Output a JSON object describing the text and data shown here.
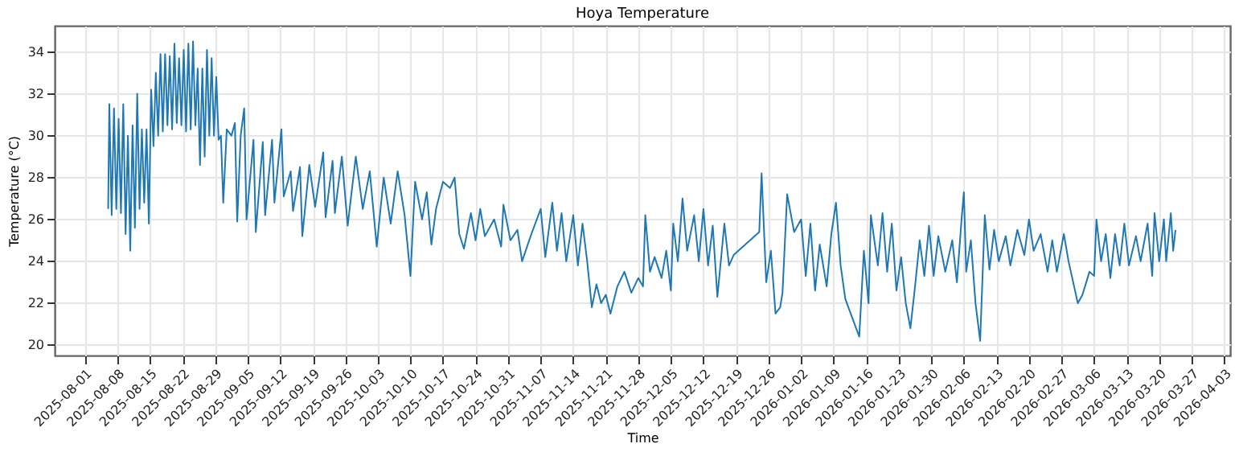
{
  "chart_data": {
    "type": "line",
    "title": "Hoya Temperature",
    "xlabel": "Time",
    "ylabel": "Temperature (°C)",
    "xlim": [
      "2025-07-25T12:00",
      "2026-04-04T06:00"
    ],
    "xticks": [
      "2025-08-01",
      "2025-08-08",
      "2025-08-15",
      "2025-08-22",
      "2025-08-29",
      "2025-09-05",
      "2025-09-12",
      "2025-09-19",
      "2025-09-26",
      "2025-10-03",
      "2025-10-10",
      "2025-10-17",
      "2025-10-24",
      "2025-10-31",
      "2025-11-07",
      "2025-11-14",
      "2025-11-21",
      "2025-11-28",
      "2025-12-05",
      "2025-12-12",
      "2025-12-19",
      "2025-12-26",
      "2026-01-02",
      "2026-01-09",
      "2026-01-16",
      "2026-01-23",
      "2026-01-30",
      "2026-02-06",
      "2026-02-13",
      "2026-02-20",
      "2026-02-27",
      "2026-03-06",
      "2026-03-13",
      "2026-03-20",
      "2026-03-27",
      "2026-04-03"
    ],
    "ylim": [
      19.5,
      35.25
    ],
    "yticks": [
      20,
      22,
      24,
      26,
      28,
      30,
      32,
      34
    ],
    "grid": true,
    "series": [
      {
        "color": "#1f77b4",
        "x": [
          "2025-08-06T00:00",
          "2025-08-06T06:00",
          "2025-08-06T18:00",
          "2025-08-07T06:00",
          "2025-08-07T18:00",
          "2025-08-08T06:00",
          "2025-08-08T18:00",
          "2025-08-09T06:00",
          "2025-08-09T18:00",
          "2025-08-10T06:00",
          "2025-08-10T18:00",
          "2025-08-11T06:00",
          "2025-08-11T18:00",
          "2025-08-12T06:00",
          "2025-08-12T18:00",
          "2025-08-13T06:00",
          "2025-08-13T18:00",
          "2025-08-14T06:00",
          "2025-08-14T18:00",
          "2025-08-15T06:00",
          "2025-08-15T18:00",
          "2025-08-16T06:00",
          "2025-08-16T18:00",
          "2025-08-17T06:00",
          "2025-08-17T18:00",
          "2025-08-18T06:00",
          "2025-08-18T18:00",
          "2025-08-19T06:00",
          "2025-08-19T18:00",
          "2025-08-20T06:00",
          "2025-08-20T18:00",
          "2025-08-21T06:00",
          "2025-08-21T18:00",
          "2025-08-22T06:00",
          "2025-08-22T18:00",
          "2025-08-23T06:00",
          "2025-08-23T18:00",
          "2025-08-24T06:00",
          "2025-08-24T18:00",
          "2025-08-25T06:00",
          "2025-08-25T18:00",
          "2025-08-26T06:00",
          "2025-08-26T18:00",
          "2025-08-27T06:00",
          "2025-08-27T18:00",
          "2025-08-28T06:00",
          "2025-08-28T18:00",
          "2025-08-29T06:00",
          "2025-08-29T18:00",
          "2025-08-30T06:00",
          "2025-08-30T18:00",
          "2025-08-31T12:00",
          "2025-09-01T12:00",
          "2025-09-02T06:00",
          "2025-09-02T18:00",
          "2025-09-03T12:00",
          "2025-09-04T06:00",
          "2025-09-04T18:00",
          "2025-09-06T06:00",
          "2025-09-06T18:00",
          "2025-09-08T06:00",
          "2025-09-08T18:00",
          "2025-09-10T06:00",
          "2025-09-10T18:00",
          "2025-09-12T06:00",
          "2025-09-12T18:00",
          "2025-09-14T06:00",
          "2025-09-14T18:00",
          "2025-09-16T06:00",
          "2025-09-16T18:00",
          "2025-09-18T06:00",
          "2025-09-19T12:00",
          "2025-09-21T06:00",
          "2025-09-21T18:00",
          "2025-09-23T06:00",
          "2025-09-23T18:00",
          "2025-09-25T06:00",
          "2025-09-26T12:00",
          "2025-09-28T06:00",
          "2025-09-29T18:00",
          "2025-10-01T06:00",
          "2025-10-02T18:00",
          "2025-10-04T06:00",
          "2025-10-05T18:00",
          "2025-10-07T06:00",
          "2025-10-08T18:00",
          "2025-10-10T00:00",
          "2025-10-11T00:00",
          "2025-10-12T12:00",
          "2025-10-13T12:00",
          "2025-10-14T12:00",
          "2025-10-15T12:00",
          "2025-10-17T00:00",
          "2025-10-18T12:00",
          "2025-10-19T12:00",
          "2025-10-20T12:00",
          "2025-10-21T12:00",
          "2025-10-23T00:00",
          "2025-10-24T00:00",
          "2025-10-25T00:00",
          "2025-10-26T00:00",
          "2025-10-28T00:00",
          "2025-10-29T12:00",
          "2025-10-30T00:00",
          "2025-10-31T12:00",
          "2025-11-02T00:00",
          "2025-11-03T00:00",
          "2025-11-05T00:00",
          "2025-11-07T00:00",
          "2025-11-08T00:00",
          "2025-11-09T12:00",
          "2025-11-10T12:00",
          "2025-11-11T12:00",
          "2025-11-12T12:00",
          "2025-11-14T00:00",
          "2025-11-15T00:00",
          "2025-11-16T00:00",
          "2025-11-17T00:00",
          "2025-11-18T00:00",
          "2025-11-19T00:00",
          "2025-11-20T00:00",
          "2025-11-21T00:00",
          "2025-11-22T00:00",
          "2025-11-23T12:00",
          "2025-11-25T00:00",
          "2025-11-26T12:00",
          "2025-11-28T00:00",
          "2025-11-29T00:00",
          "2025-11-29T12:00",
          "2025-11-30T12:00",
          "2025-12-01T12:00",
          "2025-12-03T00:00",
          "2025-12-04T00:00",
          "2025-12-05T00:00",
          "2025-12-05T12:00",
          "2025-12-06T12:00",
          "2025-12-07T12:00",
          "2025-12-08T12:00",
          "2025-12-10T00:00",
          "2025-12-11T00:00",
          "2025-12-12T00:00",
          "2025-12-13T00:00",
          "2025-12-14T00:00",
          "2025-12-15T00:00",
          "2025-12-16T12:00",
          "2025-12-17T12:00",
          "2025-12-18T12:00",
          "2025-12-24T00:00",
          "2025-12-24T12:00",
          "2025-12-25T12:00",
          "2025-12-26T12:00",
          "2025-12-27T12:00",
          "2025-12-28T12:00",
          "2025-12-29T00:00",
          "2025-12-30T00:00",
          "2025-12-31T12:00",
          "2026-01-02T00:00",
          "2026-01-03T00:00",
          "2026-01-04T00:00",
          "2026-01-05T00:00",
          "2026-01-06T00:00",
          "2026-01-07T12:00",
          "2026-01-08T12:00",
          "2026-01-09T12:00",
          "2026-01-10T12:00",
          "2026-01-11T12:00",
          "2026-01-12T12:00",
          "2026-01-13T12:00",
          "2026-01-14T12:00",
          "2026-01-15T12:00",
          "2026-01-16T12:00",
          "2026-01-17T00:00",
          "2026-01-18T12:00",
          "2026-01-19T12:00",
          "2026-01-20T12:00",
          "2026-01-21T12:00",
          "2026-01-22T12:00",
          "2026-01-23T12:00",
          "2026-01-24T12:00",
          "2026-01-25T12:00",
          "2026-01-26T12:00",
          "2026-01-27T12:00",
          "2026-01-28T12:00",
          "2026-01-29T12:00",
          "2026-01-30T12:00",
          "2026-01-31T12:00",
          "2026-02-02T00:00",
          "2026-02-03T12:00",
          "2026-02-04T12:00",
          "2026-02-05T12:00",
          "2026-02-06T00:00",
          "2026-02-06T12:00",
          "2026-02-07T12:00",
          "2026-02-08T12:00",
          "2026-02-09T12:00",
          "2026-02-10T12:00",
          "2026-02-11T12:00",
          "2026-02-12T12:00",
          "2026-02-13T12:00",
          "2026-02-15T00:00",
          "2026-02-16T00:00",
          "2026-02-17T12:00",
          "2026-02-19T00:00",
          "2026-02-20T00:00",
          "2026-02-21T00:00",
          "2026-02-22T12:00",
          "2026-02-24T00:00",
          "2026-02-25T00:00",
          "2026-02-26T00:00",
          "2026-02-27T12:00",
          "2026-02-28T12:00",
          "2026-03-01T12:00",
          "2026-03-02T12:00",
          "2026-03-03T12:00",
          "2026-03-05T00:00",
          "2026-03-06T00:00",
          "2026-03-06T12:00",
          "2026-03-07T12:00",
          "2026-03-08T12:00",
          "2026-03-09T12:00",
          "2026-03-10T12:00",
          "2026-03-11T12:00",
          "2026-03-12T12:00",
          "2026-03-13T12:00",
          "2026-03-15T00:00",
          "2026-03-16T00:00",
          "2026-03-17T12:00",
          "2026-03-18T12:00",
          "2026-03-19T00:00",
          "2026-03-20T00:00",
          "2026-03-21T00:00",
          "2026-03-21T12:00",
          "2026-03-22T12:00",
          "2026-03-23T00:00",
          "2026-03-23T12:00"
        ],
        "values": [
          26.5,
          31.5,
          26.2,
          31.3,
          26.5,
          30.8,
          26.3,
          31.5,
          25.3,
          30.0,
          24.5,
          30.5,
          25.6,
          32.0,
          26.5,
          30.3,
          26.8,
          30.3,
          25.8,
          32.2,
          29.5,
          33.0,
          30.0,
          33.9,
          30.2,
          33.9,
          30.5,
          33.8,
          30.3,
          34.4,
          30.6,
          33.7,
          30.5,
          34.1,
          30.2,
          34.4,
          30.3,
          34.5,
          30.5,
          33.2,
          28.6,
          33.2,
          29.0,
          34.1,
          30.0,
          33.7,
          30.0,
          32.8,
          29.8,
          30.0,
          26.8,
          30.3,
          30.0,
          30.6,
          25.9,
          30.0,
          31.3,
          26.0,
          29.8,
          25.4,
          29.7,
          26.2,
          29.8,
          26.8,
          30.3,
          27.1,
          28.3,
          26.4,
          28.5,
          25.2,
          28.6,
          26.6,
          29.2,
          26.1,
          28.8,
          26.3,
          29.0,
          25.7,
          29.0,
          26.5,
          28.3,
          24.7,
          28.0,
          25.8,
          28.3,
          26.2,
          23.3,
          27.8,
          26.0,
          27.3,
          24.8,
          26.5,
          27.8,
          27.5,
          28.0,
          25.3,
          24.6,
          26.3,
          25.0,
          26.5,
          25.2,
          26.0,
          24.7,
          26.7,
          25.0,
          25.5,
          24.0,
          25.3,
          26.5,
          24.2,
          26.8,
          24.5,
          26.3,
          24.0,
          26.2,
          23.8,
          25.8,
          24.0,
          21.8,
          22.9,
          22.0,
          22.4,
          21.5,
          22.8,
          23.5,
          22.5,
          23.2,
          22.8,
          26.2,
          23.5,
          24.2,
          23.2,
          24.5,
          22.6,
          25.8,
          24.0,
          27.0,
          24.5,
          26.2,
          24.0,
          26.5,
          23.8,
          25.7,
          22.3,
          25.8,
          23.8,
          24.3,
          25.4,
          28.2,
          23.0,
          24.5,
          21.5,
          21.8,
          22.5,
          27.2,
          25.4,
          26.0,
          23.3,
          25.8,
          22.6,
          24.8,
          22.8,
          25.3,
          26.8,
          23.8,
          22.2,
          21.6,
          21.0,
          20.4,
          24.5,
          22.0,
          26.2,
          23.8,
          26.3,
          23.5,
          25.8,
          22.6,
          24.2,
          22.0,
          20.8,
          22.8,
          25.0,
          23.3,
          25.7,
          23.3,
          25.2,
          23.5,
          25.0,
          23.0,
          26.0,
          27.3,
          23.5,
          25.0,
          22.0,
          20.2,
          26.2,
          23.6,
          25.5,
          24.0,
          25.2,
          23.8,
          25.5,
          24.3,
          26.0,
          24.5,
          25.3,
          23.5,
          25.0,
          23.5,
          25.3,
          24.0,
          23.0,
          22.0,
          22.4,
          23.5,
          23.3,
          26.0,
          24.0,
          25.3,
          23.2,
          25.3,
          23.8,
          25.8,
          23.8,
          25.2,
          24.0,
          25.8,
          23.3,
          26.3,
          24.0,
          26.0,
          24.0,
          26.3,
          24.5,
          25.5
        ]
      }
    ]
  }
}
